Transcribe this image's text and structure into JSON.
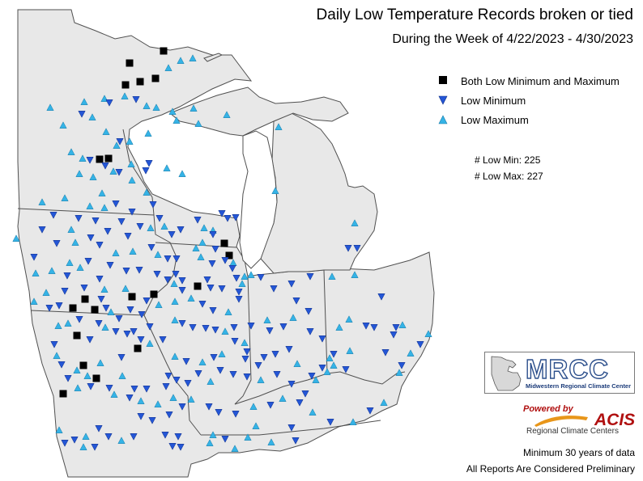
{
  "title": "Daily Low Temperature Records broken or tied",
  "subtitle": "During the Week of 4/22/2023 - 4/30/2023",
  "legend": {
    "both": "Both Low Minimum and Maximum",
    "low_min": "Low Minimum",
    "low_max": "Low Maximum"
  },
  "counts": {
    "low_min": "# Low Min: 225",
    "low_max": "# Low Max: 227"
  },
  "logo": {
    "mrcc_name": "MRCC",
    "mrcc_full": "Midwestern Regional Climate Center",
    "acis_powered": "Powered by",
    "acis_name": "ACIS",
    "acis_sub": "Regional Climate Centers"
  },
  "footnotes": {
    "min_years": "Minimum 30 years of data",
    "preliminary": "All Reports Are Considered Preliminary"
  },
  "colors": {
    "land": "#e8e8e8",
    "border": "#505050",
    "water": "#ffffff",
    "low_min": "#2456d6",
    "low_max": "#35b3e6",
    "both": "#000000"
  },
  "legend_symbols": [
    "black-square",
    "blue-down-triangle",
    "cyan-up-triangle"
  ]
}
